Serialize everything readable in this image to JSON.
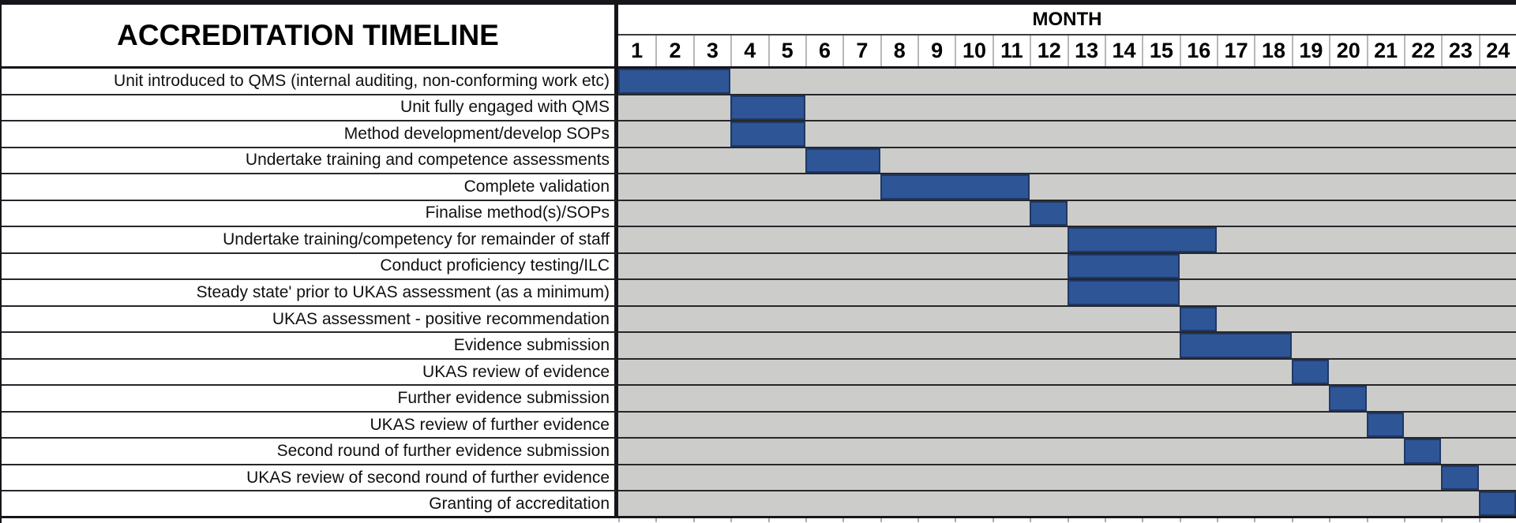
{
  "chart_data": {
    "type": "gantt",
    "title": "ACCREDITATION TIMELINE",
    "axis_label": "MONTH",
    "x_range": [
      1,
      24
    ],
    "month_ticks": [
      "1",
      "2",
      "3",
      "4",
      "5",
      "6",
      "7",
      "8",
      "9",
      "10",
      "11",
      "12",
      "13",
      "14",
      "15",
      "16",
      "17",
      "18",
      "19",
      "20",
      "21",
      "22",
      "23",
      "24"
    ],
    "legend_position": "none",
    "grid": "row-borders-only",
    "tasks": [
      {
        "name": "Unit introduced to QMS (internal auditing, non-conforming work etc)",
        "start_month": 1,
        "end_month": 3
      },
      {
        "name": "Unit fully engaged with QMS",
        "start_month": 4,
        "end_month": 5
      },
      {
        "name": "Method development/develop SOPs",
        "start_month": 4,
        "end_month": 5
      },
      {
        "name": "Undertake training and competence assessments",
        "start_month": 6,
        "end_month": 7
      },
      {
        "name": "Complete validation",
        "start_month": 8,
        "end_month": 11
      },
      {
        "name": "Finalise method(s)/SOPs",
        "start_month": 12,
        "end_month": 12
      },
      {
        "name": "Undertake training/competency for remainder of staff",
        "start_month": 13,
        "end_month": 16
      },
      {
        "name": "Conduct proficiency testing/ILC",
        "start_month": 13,
        "end_month": 15
      },
      {
        "name": "Steady state' prior to UKAS assessment (as a minimum)",
        "start_month": 13,
        "end_month": 15
      },
      {
        "name": "UKAS assessment - positive recommendation",
        "start_month": 16,
        "end_month": 16
      },
      {
        "name": "Evidence submission",
        "start_month": 16,
        "end_month": 18
      },
      {
        "name": "UKAS review of evidence",
        "start_month": 19,
        "end_month": 19
      },
      {
        "name": "Further evidence submission",
        "start_month": 20,
        "end_month": 20
      },
      {
        "name": "UKAS review of further evidence",
        "start_month": 21,
        "end_month": 21
      },
      {
        "name": "Second round of further evidence submission",
        "start_month": 22,
        "end_month": 22
      },
      {
        "name": "UKAS review of second round of further evidence",
        "start_month": 23,
        "end_month": 23
      },
      {
        "name": "Granting of accreditation",
        "start_month": 24,
        "end_month": 24
      }
    ],
    "colors": {
      "bar_fill": "#2E5596",
      "bar_border": "#1F3864",
      "track_gray": "#CCCCCA",
      "border_black": "#15151A",
      "background_white": "#FFFFFF"
    }
  }
}
